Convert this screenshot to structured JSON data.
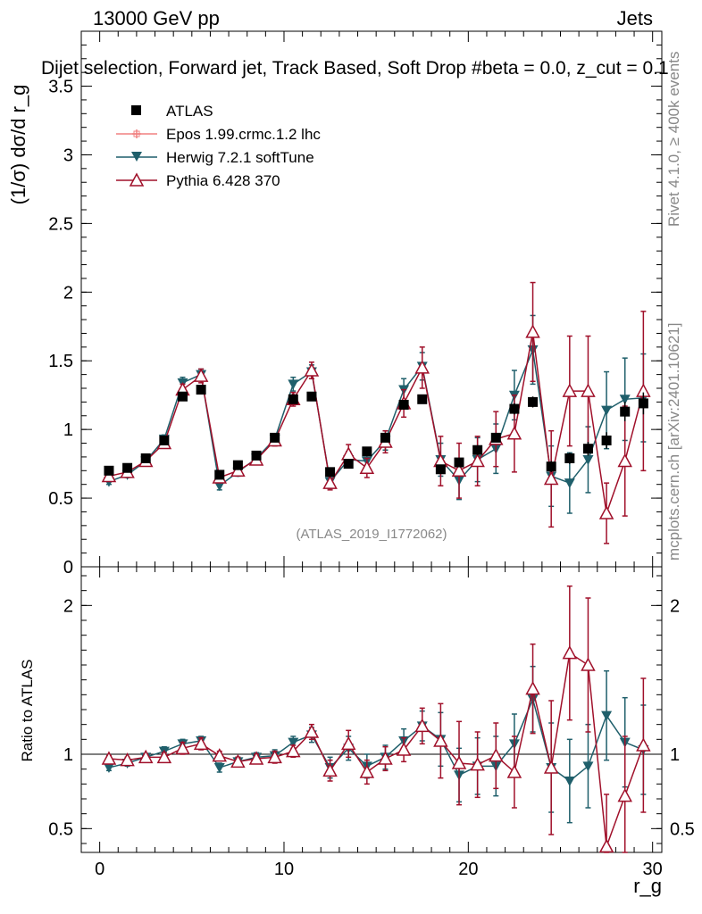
{
  "header": {
    "energy_label": "13000 GeV pp",
    "process_label": "Jets"
  },
  "side_labels": {
    "rivet": "Rivet 4.1.0, ≥ 400k events",
    "mcplots": "mcplots.cern.ch [arXiv:2401.10621]"
  },
  "watermark": "(ATLAS_2019_I1772062)",
  "chart_data": [
    {
      "type": "scatter",
      "panel": "main",
      "title": "Dijet selection, Forward jet, Track Based, Soft Drop #beta = 0.0, z_cut = 0.1",
      "xlabel": "r_g",
      "ylabel": "(1/σ) dσ/d r_g",
      "xlim": [
        -1,
        30.5
      ],
      "ylim": [
        0,
        3.9
      ],
      "yticks": [
        {
          "v": 0,
          "label": "0"
        },
        {
          "v": 0.5,
          "label": "0.5"
        },
        {
          "v": 1,
          "label": "1"
        },
        {
          "v": 1.5,
          "label": "1.5"
        },
        {
          "v": 2,
          "label": "2"
        },
        {
          "v": 2.5,
          "label": "2.5"
        },
        {
          "v": 3,
          "label": "3"
        },
        {
          "v": 3.5,
          "label": "3.5"
        }
      ],
      "x": [
        0.5,
        1.5,
        2.5,
        3.5,
        4.5,
        5.5,
        6.5,
        7.5,
        8.5,
        9.5,
        10.5,
        11.5,
        12.5,
        13.5,
        14.5,
        15.5,
        16.5,
        17.5,
        18.5,
        19.5,
        20.5,
        21.5,
        22.5,
        23.5,
        24.5,
        25.5,
        26.5,
        27.5,
        28.5,
        29.5
      ],
      "series": [
        {
          "name": "ATLAS",
          "color": "#000000",
          "marker": "square",
          "values": [
            0.7,
            0.72,
            0.79,
            0.92,
            1.24,
            1.29,
            0.67,
            0.74,
            0.81,
            0.94,
            1.22,
            1.24,
            0.69,
            0.75,
            0.84,
            0.94,
            1.18,
            1.22,
            0.71,
            0.76,
            0.85,
            0.94,
            1.15,
            1.2,
            0.73,
            0.79,
            0.86,
            0.92,
            1.13,
            1.19
          ],
          "errors": [
            0.02,
            0.02,
            0.02,
            0.02,
            0.03,
            0.03,
            0.02,
            0.02,
            0.02,
            0.02,
            0.03,
            0.03,
            0.02,
            0.02,
            0.02,
            0.02,
            0.03,
            0.03,
            0.03,
            0.03,
            0.03,
            0.03,
            0.04,
            0.04,
            0.04,
            0.04,
            0.05,
            0.06,
            0.07,
            0.08
          ]
        },
        {
          "name": "Epos 1.99.crmc.1.2 lhc",
          "color": "#f08080",
          "marker": "cross",
          "values": [],
          "errors": []
        },
        {
          "name": "Herwig 7.2.1 softTune",
          "color": "#1f5f6b",
          "marker": "triangle-down",
          "values": [
            0.62,
            0.67,
            0.77,
            0.93,
            1.34,
            1.4,
            0.59,
            0.69,
            0.79,
            0.93,
            1.33,
            1.42,
            0.62,
            0.78,
            0.77,
            0.92,
            1.29,
            1.46,
            0.78,
            0.63,
            0.78,
            0.86,
            1.25,
            1.58,
            0.66,
            0.61,
            0.78,
            1.14,
            1.22,
            1.23
          ],
          "errors": [
            0.02,
            0.02,
            0.02,
            0.03,
            0.04,
            0.04,
            0.03,
            0.03,
            0.03,
            0.04,
            0.05,
            0.05,
            0.05,
            0.06,
            0.06,
            0.07,
            0.08,
            0.1,
            0.12,
            0.14,
            0.16,
            0.18,
            0.18,
            0.25,
            0.22,
            0.22,
            0.24,
            0.28,
            0.3,
            0.32
          ]
        },
        {
          "name": "Pythia 6.428 370",
          "color": "#a0102a",
          "marker": "triangle-up-open",
          "values": [
            0.66,
            0.69,
            0.77,
            0.9,
            1.29,
            1.39,
            0.65,
            0.7,
            0.78,
            0.92,
            1.22,
            1.43,
            0.61,
            0.82,
            0.72,
            0.91,
            1.19,
            1.45,
            0.77,
            0.7,
            0.77,
            0.93,
            0.97,
            1.71,
            0.64,
            1.28,
            1.28,
            0.39,
            0.77,
            1.28
          ],
          "errors": [
            0.02,
            0.02,
            0.02,
            0.03,
            0.04,
            0.05,
            0.03,
            0.03,
            0.03,
            0.04,
            0.05,
            0.06,
            0.05,
            0.07,
            0.07,
            0.08,
            0.1,
            0.15,
            0.18,
            0.2,
            0.18,
            0.2,
            0.28,
            0.36,
            0.35,
            0.4,
            0.4,
            0.22,
            0.4,
            0.58
          ]
        }
      ]
    },
    {
      "type": "scatter",
      "panel": "ratio",
      "xlabel": "r_g",
      "ylabel": "Ratio to ATLAS",
      "xlim": [
        -1,
        30.5
      ],
      "ylim": [
        0.34,
        2.26
      ],
      "yticks": [
        {
          "v": 0.5,
          "label": "0.5"
        },
        {
          "v": 1,
          "label": "1"
        },
        {
          "v": 2,
          "label": "2"
        }
      ],
      "xticks": [
        {
          "v": 0,
          "label": "0"
        },
        {
          "v": 10,
          "label": "10"
        },
        {
          "v": 20,
          "label": "20"
        },
        {
          "v": 30,
          "label": "30"
        }
      ],
      "x": [
        0.5,
        1.5,
        2.5,
        3.5,
        4.5,
        5.5,
        6.5,
        7.5,
        8.5,
        9.5,
        10.5,
        11.5,
        12.5,
        13.5,
        14.5,
        15.5,
        16.5,
        17.5,
        18.5,
        19.5,
        20.5,
        21.5,
        22.5,
        23.5,
        24.5,
        25.5,
        26.5,
        27.5,
        28.5,
        29.5
      ],
      "series": [
        {
          "name": "Herwig 7.2.1 softTune",
          "color": "#1f5f6b",
          "marker": "triangle-down",
          "values": [
            0.91,
            0.94,
            0.98,
            1.02,
            1.07,
            1.09,
            0.91,
            0.95,
            0.98,
            0.99,
            1.08,
            1.13,
            0.91,
            1.04,
            0.92,
            0.98,
            1.09,
            1.19,
            1.1,
            0.86,
            0.92,
            0.92,
            1.07,
            1.37,
            0.91,
            0.82,
            0.92,
            1.26,
            1.08,
            1.03
          ],
          "errors": [
            0.02,
            0.02,
            0.02,
            0.03,
            0.03,
            0.03,
            0.03,
            0.03,
            0.03,
            0.04,
            0.04,
            0.05,
            0.07,
            0.08,
            0.08,
            0.08,
            0.08,
            0.1,
            0.18,
            0.18,
            0.19,
            0.2,
            0.2,
            0.22,
            0.3,
            0.28,
            0.28,
            0.3,
            0.3,
            0.3
          ]
        },
        {
          "name": "Pythia 6.428 370",
          "color": "#a0102a",
          "marker": "triangle-up-open",
          "values": [
            0.97,
            0.96,
            0.98,
            0.98,
            1.04,
            1.07,
            0.99,
            0.95,
            0.97,
            0.98,
            1.02,
            1.15,
            0.89,
            1.07,
            0.88,
            0.97,
            1.03,
            1.19,
            1.09,
            0.94,
            0.93,
            0.99,
            0.88,
            1.44,
            0.91,
            1.68,
            1.6,
            0.38,
            0.72,
            1.06
          ],
          "errors": [
            0.02,
            0.02,
            0.02,
            0.03,
            0.04,
            0.04,
            0.03,
            0.03,
            0.03,
            0.04,
            0.04,
            0.05,
            0.07,
            0.09,
            0.08,
            0.08,
            0.08,
            0.12,
            0.25,
            0.28,
            0.22,
            0.22,
            0.24,
            0.3,
            0.45,
            0.45,
            0.45,
            0.35,
            0.4,
            0.45
          ]
        }
      ]
    }
  ]
}
